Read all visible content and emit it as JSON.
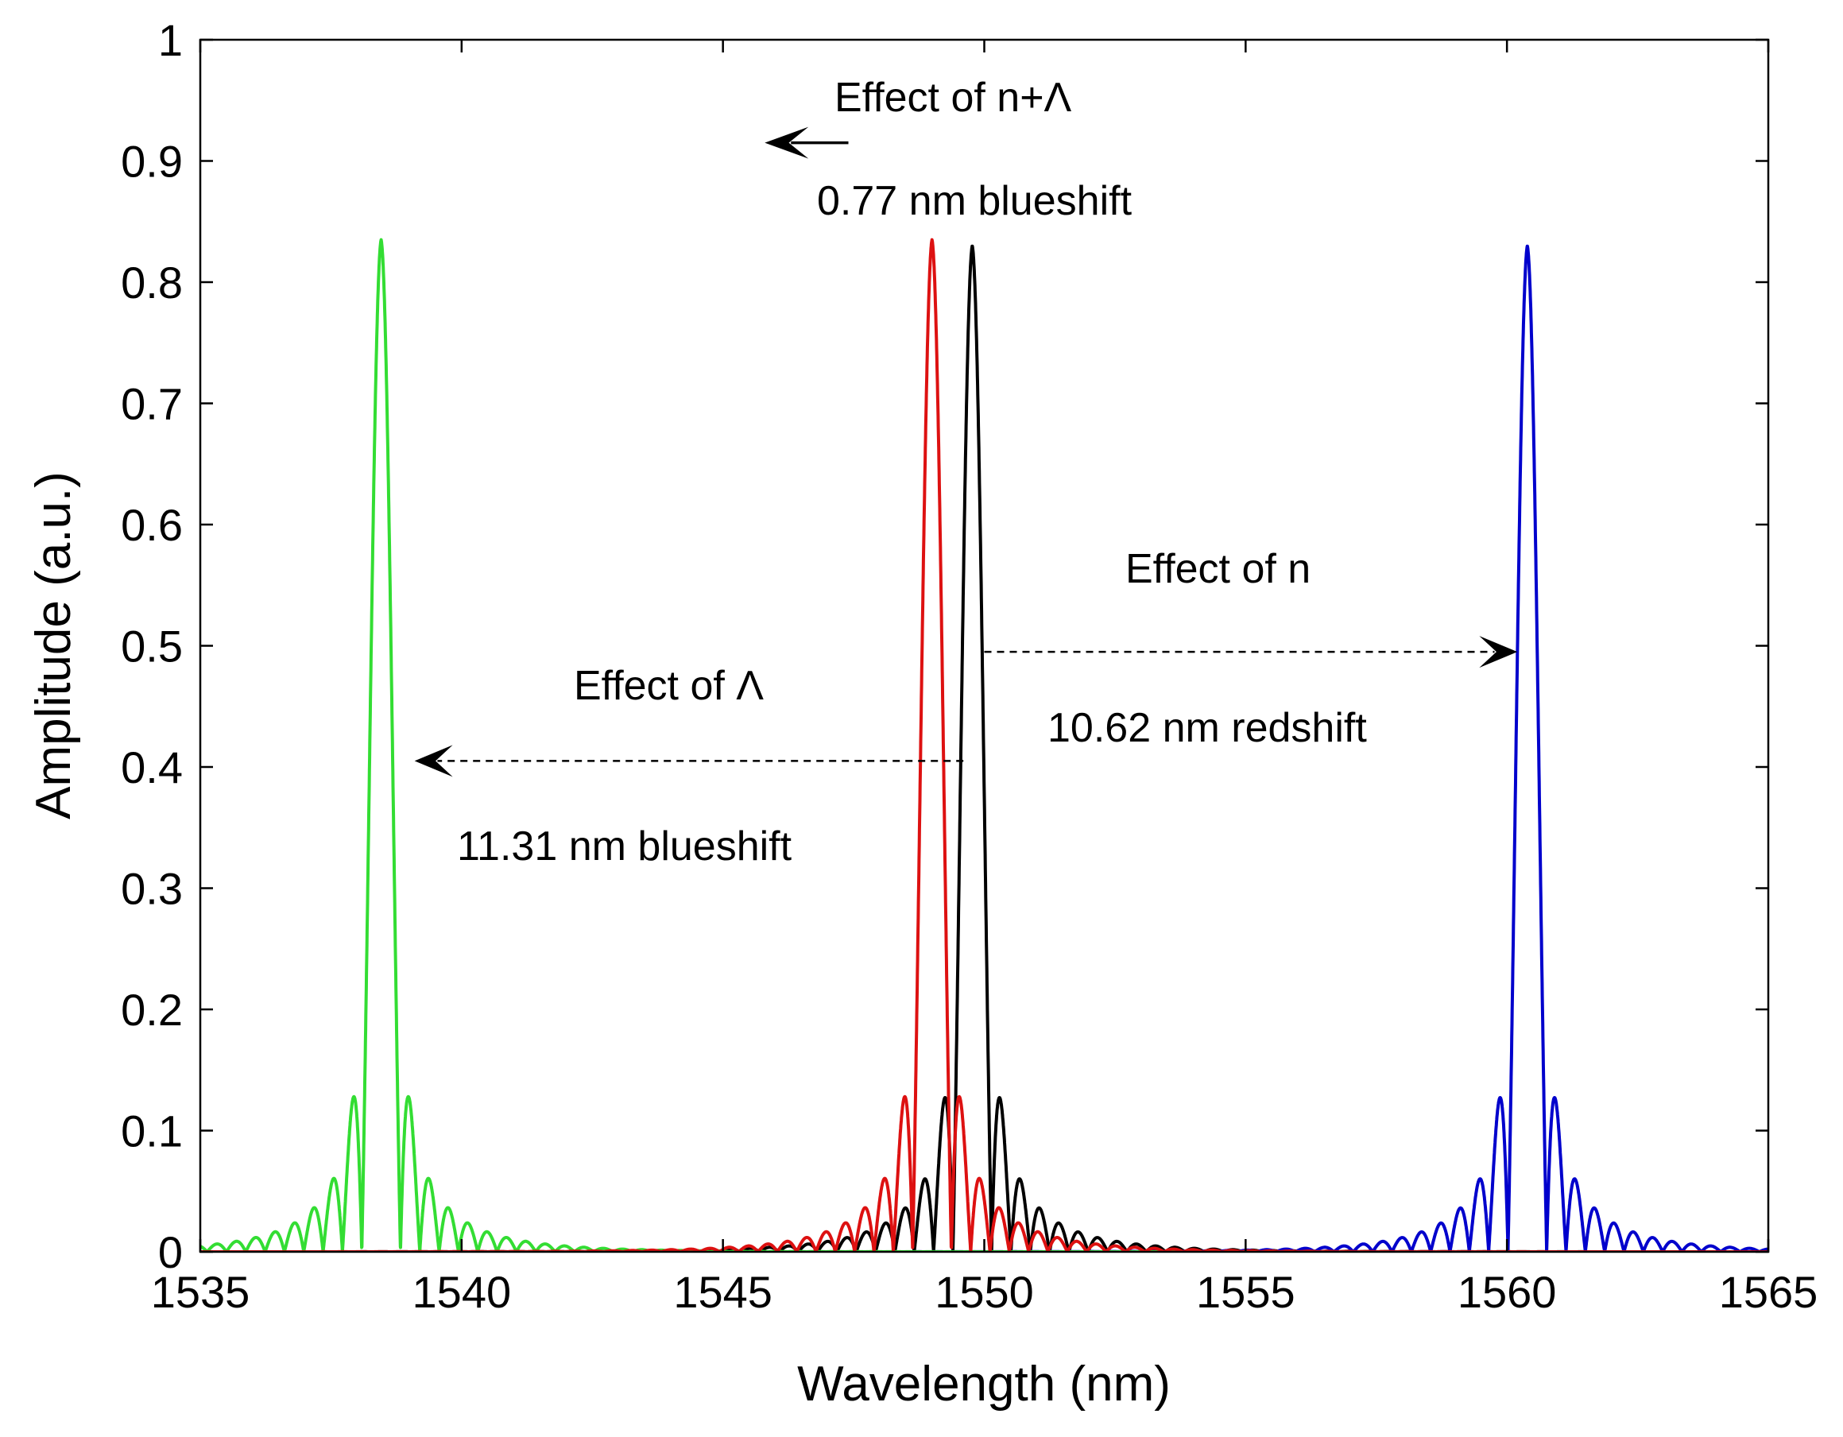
{
  "chart_data": {
    "type": "line",
    "title": "",
    "xlabel": "Wavelength (nm)",
    "ylabel": "Amplitude (a.u.)",
    "xlim": [
      1535,
      1565
    ],
    "ylim": [
      0,
      1
    ],
    "x_ticks": [
      1535,
      1540,
      1545,
      1550,
      1555,
      1560,
      1565
    ],
    "x_tick_labels": [
      "1535",
      "1540",
      "1545",
      "1550",
      "1555",
      "1560",
      "1565"
    ],
    "y_ticks": [
      0,
      0.1,
      0.2,
      0.3,
      0.4,
      0.5,
      0.6,
      0.7,
      0.8,
      0.9,
      1
    ],
    "y_tick_labels": [
      "0",
      "0.1",
      "0.2",
      "0.3",
      "0.4",
      "0.5",
      "0.6",
      "0.7",
      "0.8",
      "0.9",
      "1"
    ],
    "grid": false,
    "series": [
      {
        "name": "original",
        "color": "#000000",
        "center": 1549.77,
        "peak": 0.83,
        "sidelobe_spacing": 0.37
      },
      {
        "name": "effect-of-n",
        "color": "#0000cc",
        "center": 1560.39,
        "peak": 0.83,
        "sidelobe_spacing": 0.37
      },
      {
        "name": "effect-of-lambda",
        "color": "#33dd33",
        "center": 1538.46,
        "peak": 0.835,
        "sidelobe_spacing": 0.37
      },
      {
        "name": "effect-of-n-lambda",
        "color": "#dd1111",
        "center": 1549.0,
        "peak": 0.835,
        "sidelobe_spacing": 0.37
      }
    ],
    "annotations": {
      "n_lambda_title": "Effect of n+Λ",
      "n_lambda_value": "0.77 nm blueshift",
      "n_title": "Effect of n",
      "n_value": "10.62 nm redshift",
      "lambda_title": "Effect of Λ",
      "lambda_value": "11.31 nm blueshift"
    },
    "arrows": [
      {
        "name": "arrow-n-lambda",
        "from": [
          1547.4,
          0.915
        ],
        "to": [
          1545.8,
          0.915
        ],
        "style": "solid"
      },
      {
        "name": "arrow-n",
        "from": [
          1550.0,
          0.495
        ],
        "to": [
          1560.2,
          0.495
        ],
        "style": "dashed"
      },
      {
        "name": "arrow-lambda",
        "from": [
          1549.6,
          0.405
        ],
        "to": [
          1539.1,
          0.405
        ],
        "style": "dashed"
      }
    ]
  }
}
